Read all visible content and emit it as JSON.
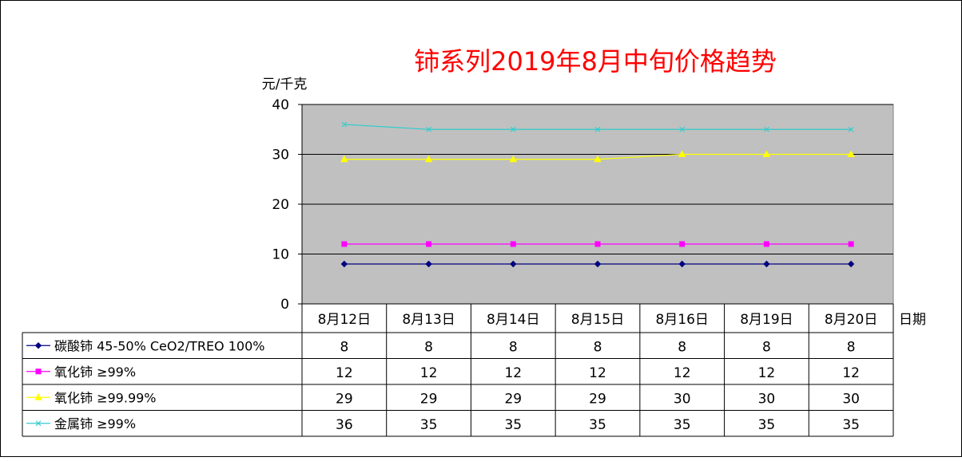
{
  "chart_data": {
    "type": "line",
    "title": "铈系列2019年8月中旬价格趋势",
    "ylabel": "元/千克",
    "xlabel": "日期",
    "ylim": [
      0,
      40
    ],
    "yticks": [
      0,
      10,
      20,
      30,
      40
    ],
    "grid": true,
    "legend": "data-table-below",
    "categories": [
      "8月12日",
      "8月13日",
      "8月14日",
      "8月15日",
      "8月16日",
      "8月19日",
      "8月20日"
    ],
    "series": [
      {
        "name": "碳酸铈 45-50% CeO2/TREO 100%",
        "values": [
          8,
          8,
          8,
          8,
          8,
          8,
          8
        ],
        "color": "#000080",
        "marker": "diamond"
      },
      {
        "name": "氧化铈 ≥99%",
        "values": [
          12,
          12,
          12,
          12,
          12,
          12,
          12
        ],
        "color": "#ff00ff",
        "marker": "square"
      },
      {
        "name": "氧化铈 ≥99.99%",
        "values": [
          29,
          29,
          29,
          29,
          30,
          30,
          30
        ],
        "color": "#ffff00",
        "marker": "triangle"
      },
      {
        "name": "金属铈 ≥99%",
        "values": [
          36,
          35,
          35,
          35,
          35,
          35,
          35
        ],
        "color": "#33cccc",
        "marker": "x"
      }
    ],
    "plot_background": "#c0c0c0",
    "title_color": "#ff0000"
  }
}
